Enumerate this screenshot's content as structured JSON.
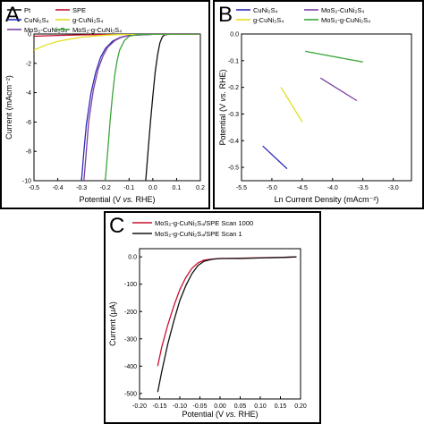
{
  "chart_data": [
    {
      "panel": "A",
      "type": "line",
      "xlabel_parts": [
        "Potential (V ",
        "vs.",
        " RHE)"
      ],
      "ylabel": "Current (mAcm⁻²)",
      "xlim": [
        -0.5,
        0.2
      ],
      "ylim": [
        -10,
        0
      ],
      "xticks": [
        "-0.5",
        "-0.4",
        "-0.3",
        "-0.2",
        "-0.1",
        "0.0",
        "0.1",
        "0.2"
      ],
      "yticks": [
        "0",
        "-2",
        "-4",
        "-6",
        "-8",
        "-10"
      ],
      "grid": false,
      "legend_position": "top",
      "series": [
        {
          "name": "Pt",
          "color": "#111111",
          "x": [
            -0.03,
            -0.02,
            -0.01,
            0.0,
            0.01,
            0.02,
            0.03,
            0.04,
            0.05,
            0.07,
            0.1,
            0.2
          ],
          "y": [
            -10,
            -8,
            -6,
            -4.2,
            -2.6,
            -1.4,
            -0.6,
            -0.2,
            -0.05,
            -0.02,
            -0.01,
            0
          ]
        },
        {
          "name": "CuNi₂S₄",
          "color": "#2b2bb8",
          "x": [
            -0.3,
            -0.29,
            -0.28,
            -0.26,
            -0.24,
            -0.22,
            -0.2,
            -0.17,
            -0.14,
            -0.1,
            0.0,
            0.2
          ],
          "y": [
            -10,
            -8,
            -6.2,
            -4,
            -2.6,
            -1.6,
            -1,
            -0.5,
            -0.25,
            -0.1,
            -0.02,
            0
          ]
        },
        {
          "name": "MoS₂-CuNi₂S₄",
          "color": "#7b3fa0",
          "x": [
            -0.29,
            -0.28,
            -0.27,
            -0.25,
            -0.23,
            -0.21,
            -0.19,
            -0.16,
            -0.13,
            -0.1,
            0.0,
            0.2
          ],
          "y": [
            -10,
            -8,
            -6,
            -3.8,
            -2.4,
            -1.5,
            -0.9,
            -0.45,
            -0.2,
            -0.1,
            -0.02,
            0
          ]
        },
        {
          "name": "SPE",
          "color": "#c8102e",
          "x": [
            -0.5,
            -0.4,
            -0.3,
            -0.2,
            -0.1,
            0.0,
            0.1,
            0.2
          ],
          "y": [
            -0.15,
            -0.1,
            -0.06,
            -0.03,
            -0.02,
            -0.01,
            0,
            0
          ]
        },
        {
          "name": "g-CuNi₂S₄",
          "color": "#e5de1f",
          "x": [
            -0.5,
            -0.45,
            -0.4,
            -0.35,
            -0.3,
            -0.25,
            -0.2,
            -0.15,
            -0.1,
            0.0,
            0.2
          ],
          "y": [
            -1.1,
            -0.75,
            -0.5,
            -0.35,
            -0.22,
            -0.14,
            -0.08,
            -0.04,
            -0.02,
            -0.01,
            0
          ]
        },
        {
          "name": "MoS₂-g-CuNi₂S₄",
          "color": "#3aa63a",
          "x": [
            -0.2,
            -0.19,
            -0.18,
            -0.17,
            -0.16,
            -0.15,
            -0.14,
            -0.12,
            -0.1,
            -0.07,
            0.0,
            0.2
          ],
          "y": [
            -10,
            -8,
            -6,
            -4.2,
            -2.8,
            -1.8,
            -1.1,
            -0.45,
            -0.15,
            -0.05,
            -0.01,
            0
          ]
        }
      ]
    },
    {
      "panel": "B",
      "type": "line",
      "xlabel": "Ln Current Density (mAcm⁻²)",
      "ylabel_parts": [
        "Potential (V ",
        "vs.",
        " RHE)"
      ],
      "xlim": [
        -5.5,
        -2.7
      ],
      "ylim": [
        -0.55,
        0.0
      ],
      "xticks": [
        "-5.5",
        "-5.0",
        "-4.5",
        "-4.0",
        "-3.5",
        "-3.0"
      ],
      "yticks": [
        "0.0",
        "-0.1",
        "-0.2",
        "-0.3",
        "-0.4",
        "-0.5"
      ],
      "grid": false,
      "legend_position": "top",
      "series": [
        {
          "name": "CuNi₂S₄",
          "color": "#2b2bb8",
          "x": [
            -5.15,
            -4.75
          ],
          "y": [
            -0.42,
            -0.505
          ]
        },
        {
          "name": "MoS₂-CuNi₂S₄",
          "color": "#7b3fa0",
          "x": [
            -4.2,
            -3.6
          ],
          "y": [
            -0.165,
            -0.25
          ]
        },
        {
          "name": "g-CuNi₂S₄",
          "color": "#e5de1f",
          "x": [
            -4.85,
            -4.5
          ],
          "y": [
            -0.2,
            -0.33
          ]
        },
        {
          "name": "MoS₂-g-CuNi₂S₄",
          "color": "#3aa63a",
          "x": [
            -4.45,
            -3.5
          ],
          "y": [
            -0.065,
            -0.105
          ]
        }
      ]
    },
    {
      "panel": "C",
      "type": "line",
      "xlabel_parts": [
        "Potential (V ",
        "vs.",
        " RHE)"
      ],
      "ylabel": "Current (μA)",
      "xlim": [
        -0.2,
        0.2
      ],
      "ylim": [
        -520,
        30
      ],
      "xticks": [
        "-0.20",
        "-0.15",
        "-0.10",
        "-0.05",
        "0.00",
        "0.05",
        "0.10",
        "0.15",
        "0.20"
      ],
      "yticks": [
        "0.0",
        "-100",
        "-200",
        "-300",
        "-400",
        "-500"
      ],
      "grid": false,
      "legend_position": "top-left",
      "series": [
        {
          "name": "MoS₂-g-CuNi₂S₄/SPE Scan 1000",
          "color": "#c8102e",
          "x": [
            -0.155,
            -0.145,
            -0.13,
            -0.115,
            -0.1,
            -0.085,
            -0.07,
            -0.055,
            -0.04,
            -0.02,
            0.0,
            0.05,
            0.1,
            0.15,
            0.19
          ],
          "y": [
            -400,
            -330,
            -250,
            -180,
            -120,
            -75,
            -42,
            -22,
            -12,
            -8,
            -6,
            -5,
            -3,
            -2,
            0
          ]
        },
        {
          "name": "MoS₂-g-CuNi₂S₄/SPE Scan 1",
          "color": "#111111",
          "x": [
            -0.155,
            -0.145,
            -0.13,
            -0.115,
            -0.1,
            -0.085,
            -0.07,
            -0.055,
            -0.04,
            -0.02,
            0.0,
            0.05,
            0.1,
            0.15,
            0.19
          ],
          "y": [
            -495,
            -420,
            -320,
            -235,
            -160,
            -105,
            -62,
            -32,
            -16,
            -9,
            -6,
            -6,
            -4,
            -2,
            0
          ]
        }
      ]
    }
  ],
  "panel_labels": [
    "A",
    "B",
    "C"
  ]
}
